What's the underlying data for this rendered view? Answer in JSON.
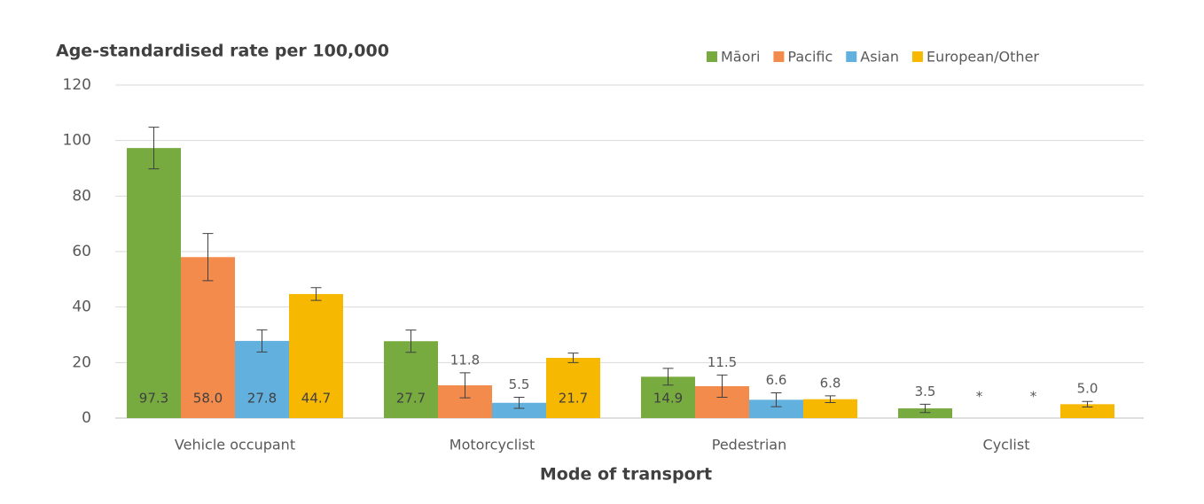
{
  "chart_data": {
    "type": "bar",
    "title": "Age-standardised rate per 100,000",
    "x_label": "Mode of transport",
    "categories": [
      "Vehicle occupant",
      "Motorcyclist",
      "Pedestrian",
      "Cyclist"
    ],
    "series": [
      {
        "name": "Māori",
        "color": "#77ab3f",
        "values": [
          97.3,
          27.7,
          14.9,
          3.5
        ],
        "value_labels": [
          "97.3",
          "27.7",
          "14.9",
          "3.5"
        ],
        "errors": [
          7.5,
          4,
          3,
          1.5
        ]
      },
      {
        "name": "Pacific",
        "color": "#f28b4c",
        "values": [
          58.0,
          11.8,
          11.5,
          null
        ],
        "value_labels": [
          "58.0",
          "11.8",
          "11.5",
          "*"
        ],
        "errors": [
          8.5,
          4.5,
          4,
          null
        ]
      },
      {
        "name": "Asian",
        "color": "#62b0de",
        "values": [
          27.8,
          5.5,
          6.6,
          null
        ],
        "value_labels": [
          "27.8",
          "5.5",
          "6.6",
          "*"
        ],
        "errors": [
          4,
          2,
          2.5,
          null
        ]
      },
      {
        "name": "European/Other",
        "color": "#f6b800",
        "values": [
          44.7,
          21.7,
          6.8,
          5.0
        ],
        "value_labels": [
          "44.7",
          "21.7",
          "6.8",
          "5.0"
        ],
        "errors": [
          2.3,
          1.7,
          1.2,
          1
        ]
      }
    ],
    "ylim": [
      0,
      120
    ],
    "yticks": [
      0,
      20,
      40,
      60,
      80,
      100,
      120
    ],
    "grid": true,
    "legend": "top-right"
  }
}
